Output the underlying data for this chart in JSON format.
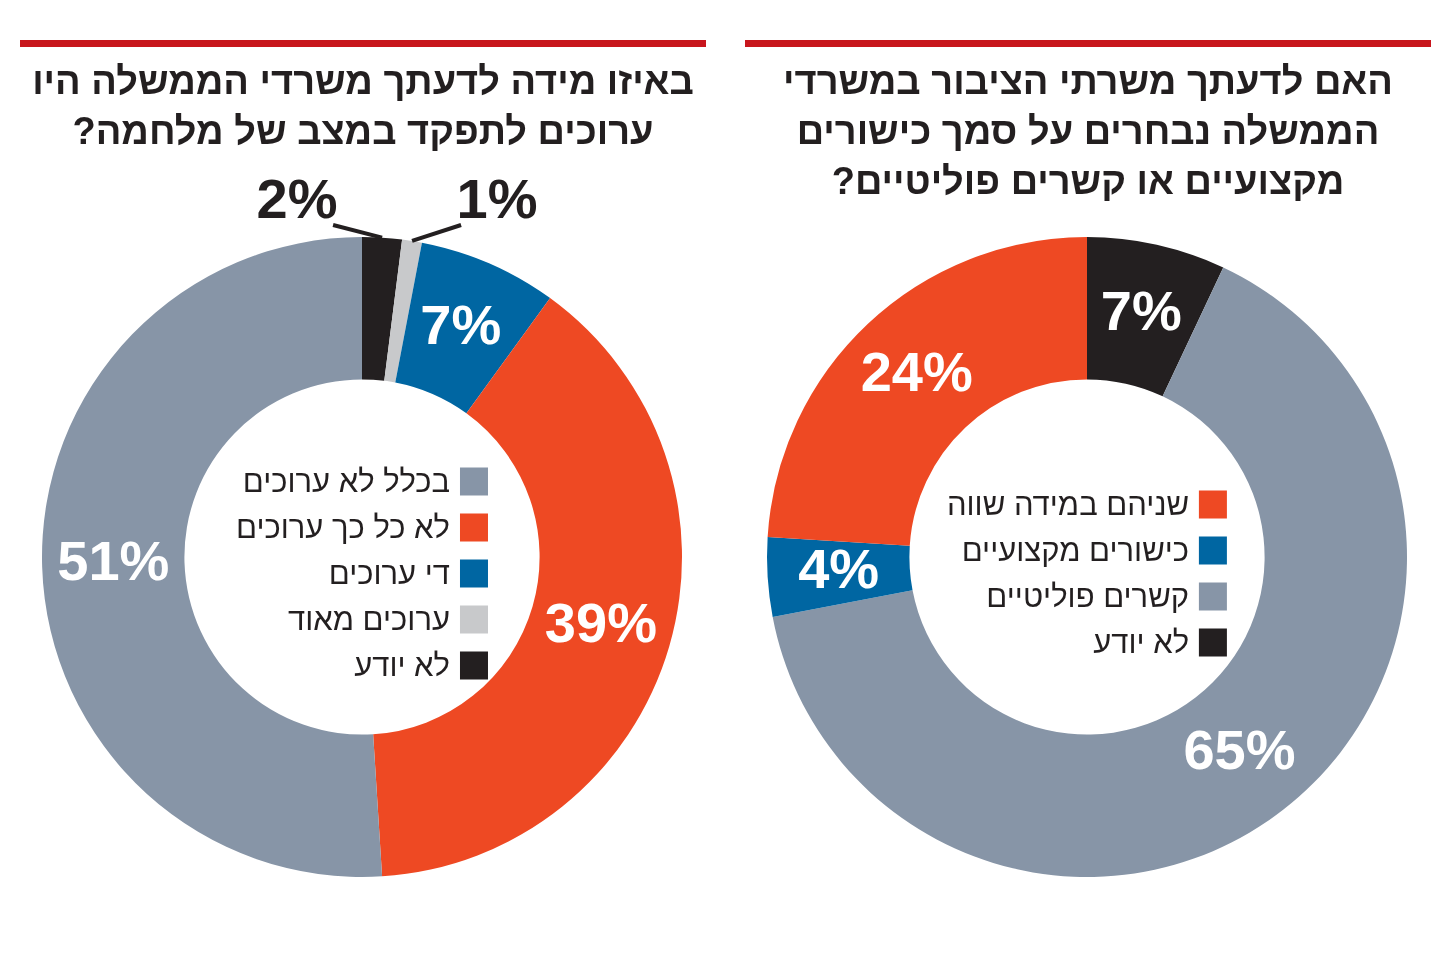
{
  "chart_data": [
    {
      "type": "donut",
      "title": "האם לדעתך משרתי הציבור במשרדי הממשלה נבחרים על סמך כישורים מקצועיים או קשרים פוליטיים?",
      "categories": [
        "שניהם במידה שווה",
        "כישורים מקצועיים",
        "קשרים פוליטיים",
        "לא יודע"
      ],
      "values": [
        24,
        4,
        65,
        7
      ],
      "colors": [
        "#ee4923",
        "#0066a2",
        "#8795a7",
        "#231f20"
      ],
      "value_labels": [
        "24%",
        "4%",
        "65%",
        "7%"
      ],
      "legend": "center"
    },
    {
      "type": "donut",
      "title": "באיזו מידה לדעתך משרדי הממשלה היו ערוכים לתפקד במצב של מלחמה?",
      "categories": [
        "בכלל לא ערוכים",
        "לא כל כך ערוכים",
        "די ערוכים",
        "ערוכים מאוד",
        "לא יודע"
      ],
      "values": [
        51,
        39,
        7,
        1,
        2
      ],
      "colors": [
        "#8795a7",
        "#ee4923",
        "#0066a2",
        "#c8c9cb",
        "#231f20"
      ],
      "value_labels": [
        "51%",
        "39%",
        "7%",
        "1%",
        "2%"
      ],
      "legend": "center"
    }
  ]
}
